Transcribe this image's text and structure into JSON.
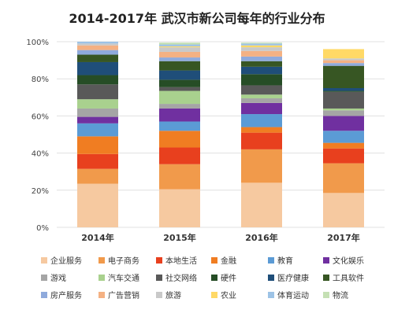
{
  "chart_data": {
    "type": "bar",
    "stacked": true,
    "percent": true,
    "title": "2014-2017年 武汉市新公司每年的行业分布",
    "xlabel": "",
    "ylabel": "",
    "ylim": [
      0,
      100
    ],
    "y_ticks": [
      "0%",
      "20%",
      "40%",
      "60%",
      "80%",
      "100%"
    ],
    "grid": true,
    "legend_position": "bottom",
    "categories": [
      "2014年",
      "2015年",
      "2016年",
      "2017年"
    ],
    "series": [
      {
        "name": "企业服务",
        "color": "#f6c9a0",
        "values": [
          23.5,
          20.5,
          24,
          18.5
        ]
      },
      {
        "name": "电子商务",
        "color": "#f19a4b",
        "values": [
          8,
          13.5,
          18,
          16
        ]
      },
      {
        "name": "本地生活",
        "color": "#e8401e",
        "values": [
          8,
          9,
          9,
          8
        ]
      },
      {
        "name": "金融",
        "color": "#f07d22",
        "values": [
          9.5,
          9,
          3,
          3
        ]
      },
      {
        "name": "教育",
        "color": "#5b9bd5",
        "values": [
          7,
          5,
          7,
          6.5
        ]
      },
      {
        "name": "文化娱乐",
        "color": "#7030a0",
        "values": [
          3.5,
          7,
          6,
          8
        ]
      },
      {
        "name": "游戏",
        "color": "#a5a5a5",
        "values": [
          4.5,
          2.5,
          2.5,
          3
        ]
      },
      {
        "name": "汽车交通",
        "color": "#a9d18e",
        "values": [
          5,
          7,
          2,
          1
        ]
      },
      {
        "name": "社交网络",
        "color": "#595959",
        "values": [
          8,
          2,
          5,
          9
        ]
      },
      {
        "name": "硬件",
        "color": "#264d26",
        "values": [
          5,
          4,
          6,
          0.5
        ]
      },
      {
        "name": "医疗健康",
        "color": "#1f4e79",
        "values": [
          7,
          5,
          4,
          1.5
        ]
      },
      {
        "name": "工具软件",
        "color": "#375623",
        "values": [
          4,
          5,
          3,
          12
        ]
      },
      {
        "name": "房产服务",
        "color": "#8faadc",
        "values": [
          2.5,
          2,
          2.5,
          1.5
        ]
      },
      {
        "name": "广告营销",
        "color": "#f4b183",
        "values": [
          2.5,
          3,
          3,
          1.5
        ]
      },
      {
        "name": "旅游",
        "color": "#c9c9c9",
        "values": [
          1,
          2.5,
          2,
          1
        ]
      },
      {
        "name": "农业",
        "color": "#ffd966",
        "values": [
          0,
          0.5,
          1,
          5
        ]
      },
      {
        "name": "体育运动",
        "color": "#9dc3e6",
        "values": [
          1,
          1,
          1,
          0
        ]
      },
      {
        "name": "物流",
        "color": "#c5e0b4",
        "values": [
          0,
          1,
          0.5,
          0
        ]
      }
    ]
  }
}
